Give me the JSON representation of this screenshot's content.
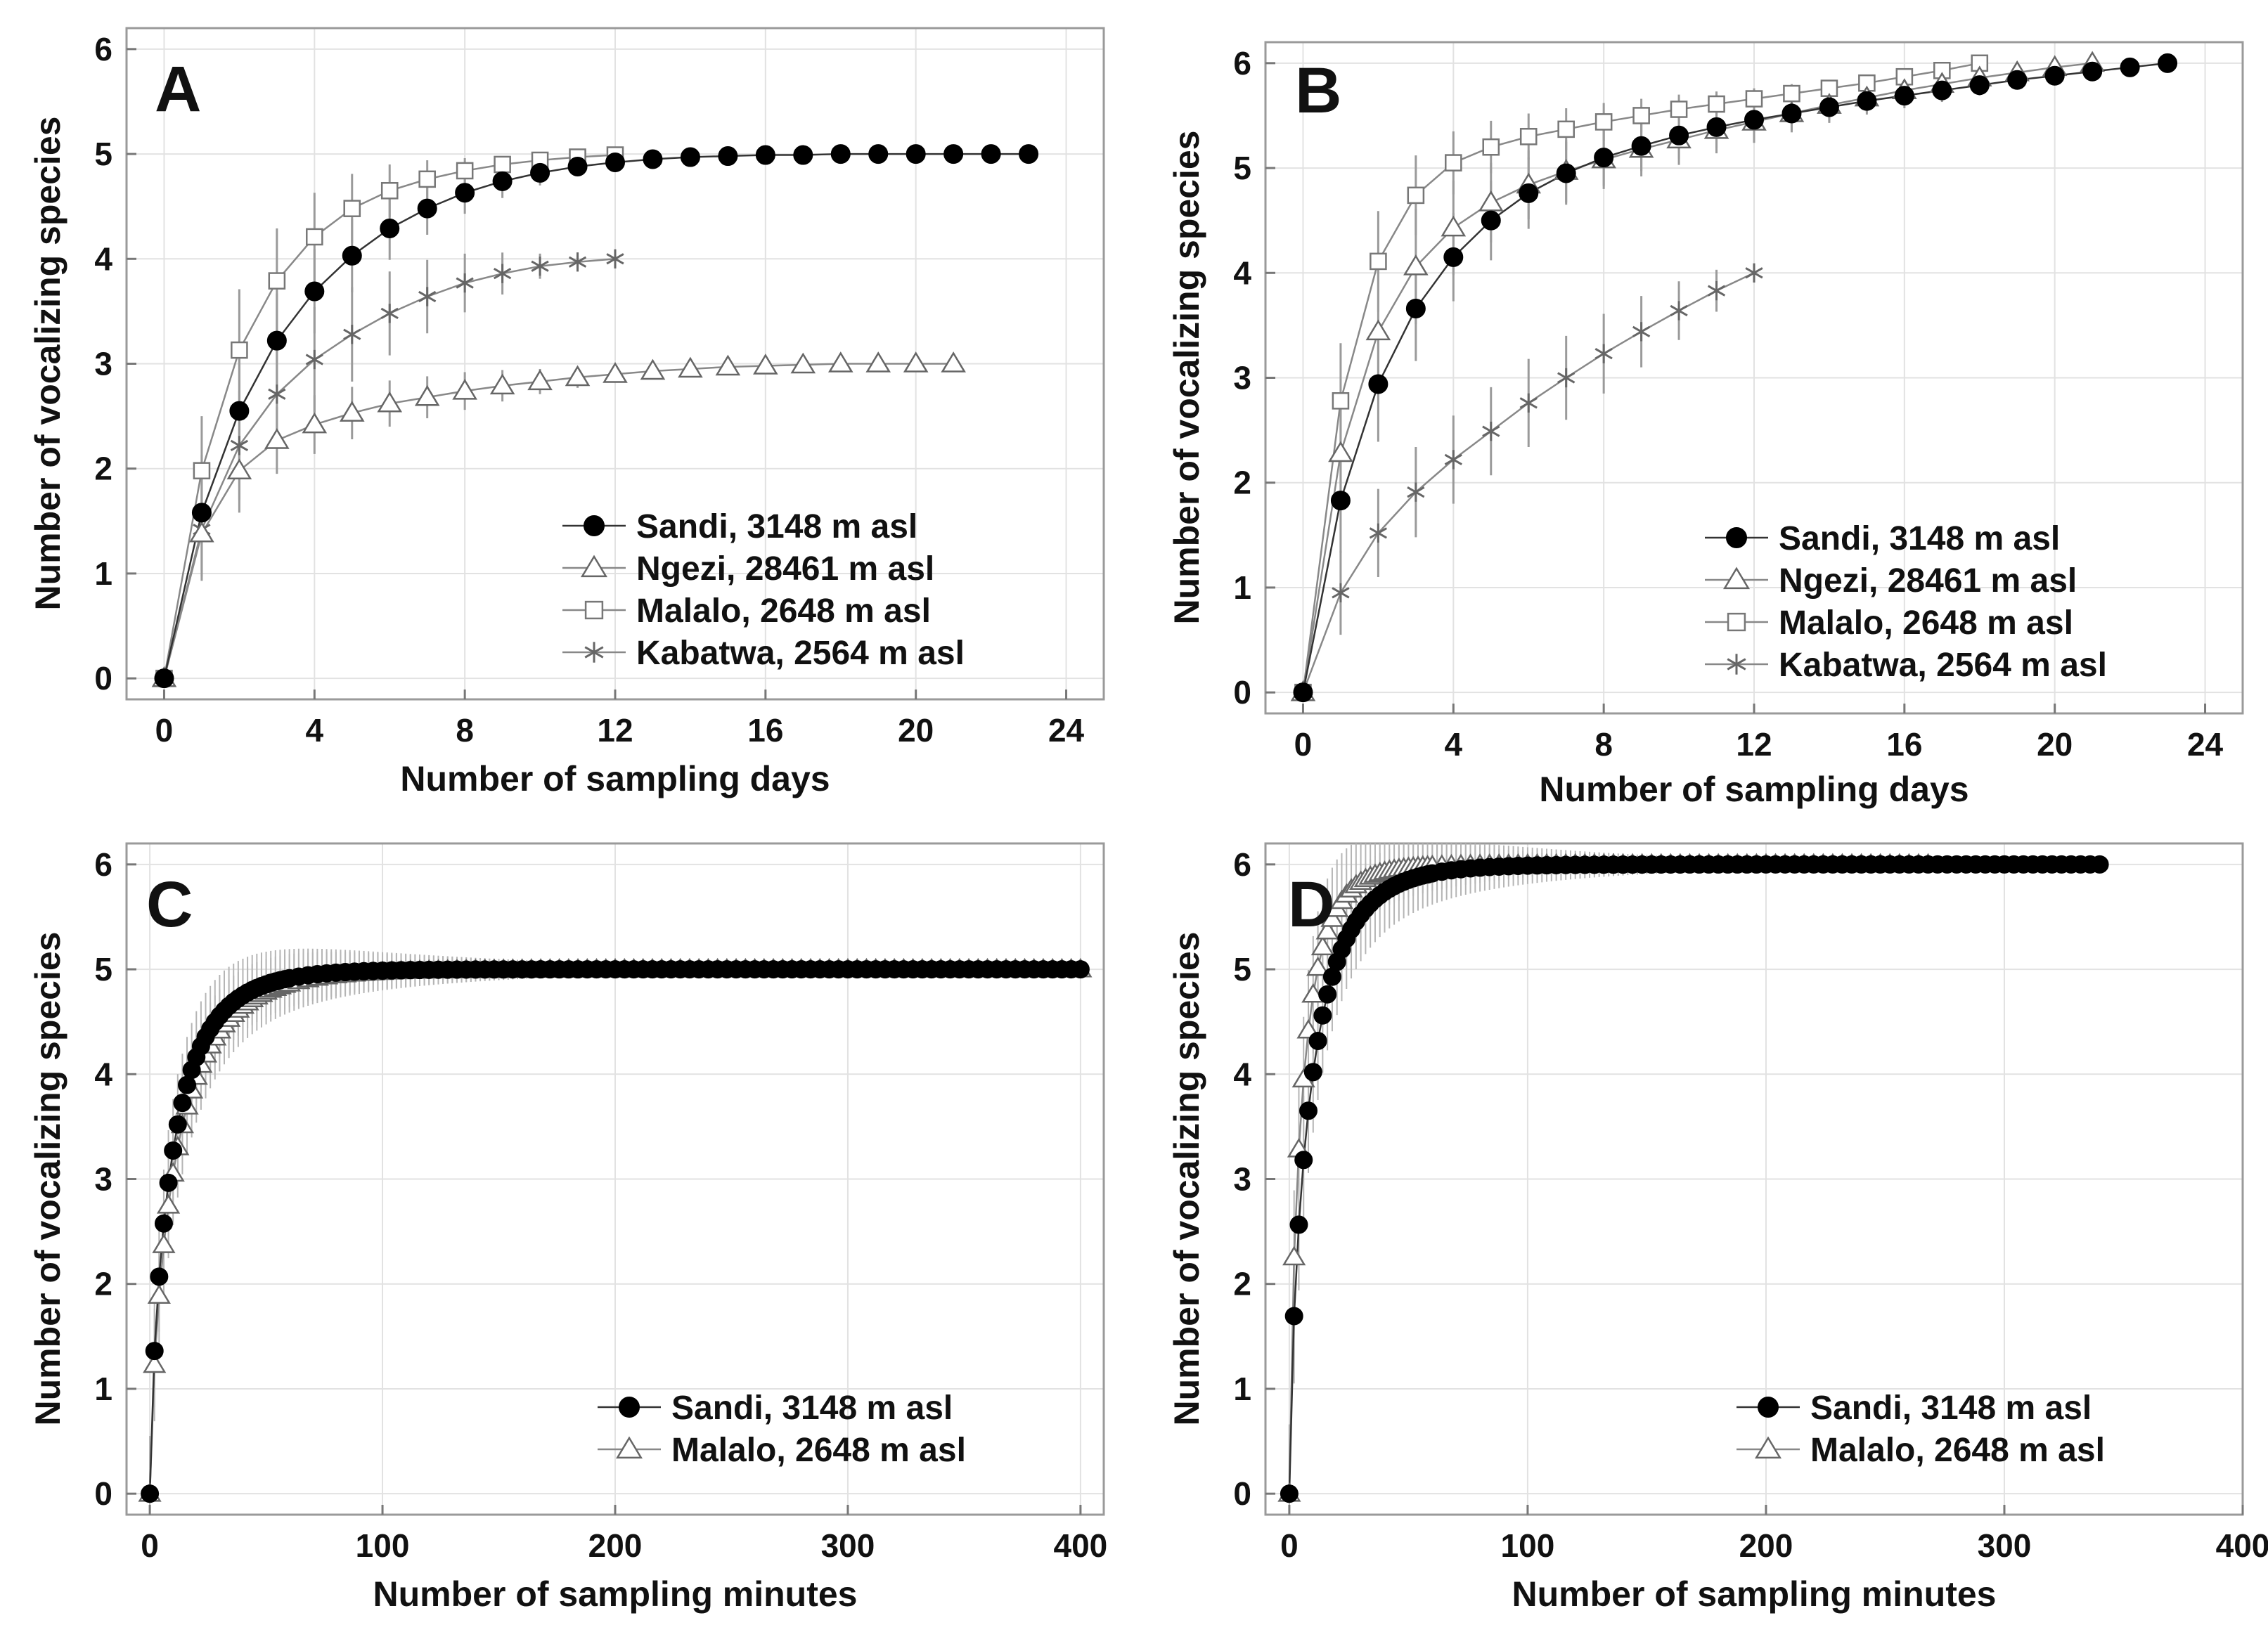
{
  "chart_data": [
    {
      "type": "line",
      "panel": "A",
      "xlabel": "Number of sampling days",
      "ylabel": "Number of vocalizing species",
      "xlim": [
        -1,
        25
      ],
      "ylim": [
        -0.2,
        6.2
      ],
      "xticks": [
        "0",
        "4",
        "8",
        "12",
        "16",
        "20",
        "24"
      ],
      "yticks": [
        "0",
        "1",
        "2",
        "3",
        "4",
        "5",
        "6"
      ],
      "series": [
        {
          "name": "Sandi, 3148 m asl",
          "marker": "circle",
          "x": [
            0,
            1,
            2,
            3,
            4,
            5,
            6,
            7,
            8,
            9,
            10,
            11,
            12,
            13,
            14,
            15,
            16,
            17,
            18,
            19,
            20,
            21,
            22,
            23
          ],
          "values": [
            0,
            1.58,
            2.55,
            3.22,
            3.69,
            4.03,
            4.29,
            4.48,
            4.63,
            4.74,
            4.82,
            4.88,
            4.92,
            4.95,
            4.97,
            4.98,
            4.99,
            4.99,
            5,
            5,
            5,
            5,
            5,
            5
          ],
          "err": [
            0,
            0.55,
            0.5,
            0.45,
            0.4,
            0.35,
            0.3,
            0.25,
            0.2,
            0.16,
            0.12,
            0.08,
            0.06,
            0.04,
            0.03,
            0.02,
            0.01,
            0,
            0,
            0,
            0,
            0,
            0,
            0
          ]
        },
        {
          "name": "Ngezi, 28461 m asl",
          "marker": "triangle",
          "x": [
            0,
            1,
            2,
            3,
            4,
            5,
            6,
            7,
            8,
            9,
            10,
            11,
            12,
            13,
            14,
            15,
            16,
            17,
            18,
            19,
            20,
            21
          ],
          "values": [
            0,
            1.38,
            1.98,
            2.27,
            2.42,
            2.53,
            2.62,
            2.68,
            2.74,
            2.79,
            2.83,
            2.87,
            2.9,
            2.93,
            2.95,
            2.97,
            2.98,
            2.99,
            3,
            3,
            3,
            3
          ],
          "err": [
            0,
            0.45,
            0.4,
            0.32,
            0.28,
            0.25,
            0.22,
            0.2,
            0.18,
            0.15,
            0.12,
            0.1,
            0.08,
            0.06,
            0.05,
            0.04,
            0.03,
            0.02,
            0.01,
            0,
            0,
            0
          ]
        },
        {
          "name": "Malalo, 2648 m asl",
          "marker": "square",
          "x": [
            0,
            1,
            2,
            3,
            4,
            5,
            6,
            7,
            8,
            9,
            10,
            11,
            12
          ],
          "values": [
            0,
            1.98,
            3.13,
            3.79,
            4.21,
            4.48,
            4.65,
            4.76,
            4.84,
            4.9,
            4.94,
            4.97,
            4.99
          ],
          "err": [
            0,
            0.52,
            0.58,
            0.5,
            0.42,
            0.33,
            0.25,
            0.18,
            0.12,
            0.08,
            0.05,
            0.03,
            0.01
          ]
        },
        {
          "name": "Kabatwa, 2564 m asl",
          "marker": "star",
          "x": [
            0,
            1,
            2,
            3,
            4,
            5,
            6,
            7,
            8,
            9,
            10,
            11,
            12
          ],
          "values": [
            0,
            1.42,
            2.22,
            2.71,
            3.04,
            3.28,
            3.48,
            3.64,
            3.77,
            3.86,
            3.93,
            3.97,
            4
          ],
          "err": [
            0,
            0.45,
            0.52,
            0.52,
            0.5,
            0.45,
            0.4,
            0.35,
            0.28,
            0.2,
            0.12,
            0.06,
            0
          ]
        }
      ],
      "legend": "lower-right"
    },
    {
      "type": "line",
      "panel": "B",
      "xlabel": "Number of sampling days",
      "ylabel": "Number of vocalizing species",
      "xlim": [
        -1,
        25
      ],
      "ylim": [
        -0.2,
        6.2
      ],
      "xticks": [
        "0",
        "4",
        "8",
        "12",
        "16",
        "20",
        "24"
      ],
      "yticks": [
        "0",
        "1",
        "2",
        "3",
        "4",
        "5",
        "6"
      ],
      "series": [
        {
          "name": "Sandi, 3148 m asl",
          "marker": "circle",
          "x": [
            0,
            1,
            2,
            3,
            4,
            5,
            6,
            7,
            8,
            9,
            10,
            11,
            12,
            13,
            14,
            15,
            16,
            17,
            18,
            19,
            20,
            21,
            22,
            23
          ],
          "values": [
            0,
            1.83,
            2.94,
            3.66,
            4.15,
            4.5,
            4.76,
            4.95,
            5.1,
            5.21,
            5.31,
            5.39,
            5.46,
            5.52,
            5.58,
            5.64,
            5.69,
            5.74,
            5.79,
            5.84,
            5.88,
            5.92,
            5.96,
            6
          ],
          "err": [
            0,
            0.5,
            0.55,
            0.5,
            0.42,
            0.38,
            0.34,
            0.3,
            0.27,
            0.24,
            0.22,
            0.2,
            0.18,
            0.16,
            0.15,
            0.13,
            0.12,
            0.11,
            0.1,
            0.08,
            0.07,
            0.05,
            0.03,
            0
          ]
        },
        {
          "name": "Ngezi, 28461 m asl",
          "marker": "triangle",
          "x": [
            0,
            1,
            2,
            3,
            4,
            5,
            6,
            7,
            8,
            9,
            10,
            11,
            12,
            13,
            14,
            15,
            16,
            17,
            18,
            19,
            20,
            21
          ],
          "values": [
            0,
            2.28,
            3.44,
            4.06,
            4.43,
            4.67,
            4.84,
            4.97,
            5.08,
            5.18,
            5.27,
            5.36,
            5.44,
            5.52,
            5.6,
            5.67,
            5.74,
            5.8,
            5.86,
            5.91,
            5.96,
            6
          ],
          "err": [
            0,
            0.55,
            0.6,
            0.55,
            0.45,
            0.38,
            0.33,
            0.3,
            0.28,
            0.26,
            0.24,
            0.22,
            0.2,
            0.18,
            0.16,
            0.14,
            0.12,
            0.1,
            0.08,
            0.06,
            0.03,
            0
          ]
        },
        {
          "name": "Malalo, 2648 m asl",
          "marker": "square",
          "x": [
            0,
            1,
            2,
            3,
            4,
            5,
            6,
            7,
            8,
            9,
            10,
            11,
            12,
            13,
            14,
            15,
            16,
            17,
            18
          ],
          "values": [
            0,
            2.78,
            4.11,
            4.74,
            5.05,
            5.2,
            5.3,
            5.37,
            5.44,
            5.5,
            5.56,
            5.61,
            5.66,
            5.71,
            5.76,
            5.81,
            5.87,
            5.93,
            6
          ],
          "err": [
            0,
            0.55,
            0.48,
            0.38,
            0.3,
            0.25,
            0.22,
            0.2,
            0.18,
            0.16,
            0.14,
            0.12,
            0.1,
            0.09,
            0.08,
            0.06,
            0.04,
            0.02,
            0
          ]
        },
        {
          "name": "Kabatwa, 2564 m asl",
          "marker": "star",
          "x": [
            0,
            1,
            2,
            3,
            4,
            5,
            6,
            7,
            8,
            9,
            10,
            11,
            12
          ],
          "values": [
            0,
            0.95,
            1.52,
            1.91,
            2.22,
            2.49,
            2.76,
            3.0,
            3.23,
            3.44,
            3.64,
            3.83,
            4
          ],
          "err": [
            0,
            0.4,
            0.42,
            0.43,
            0.42,
            0.42,
            0.42,
            0.4,
            0.38,
            0.34,
            0.28,
            0.2,
            0
          ]
        }
      ],
      "legend": "lower-right"
    },
    {
      "type": "line",
      "panel": "C",
      "xlabel": "Number of sampling minutes",
      "ylabel": "Number of vocalizing species",
      "xlim": [
        -10,
        410
      ],
      "ylim": [
        -0.2,
        6.2
      ],
      "xticks": [
        "0",
        "100",
        "200",
        "300",
        "400"
      ],
      "yticks": [
        "0",
        "1",
        "2",
        "3",
        "4",
        "5",
        "6"
      ],
      "series": [
        {
          "name": "Sandi, 3148 m asl",
          "marker": "circle",
          "asymptote": 5,
          "k": 0.68,
          "n": 5,
          "xmax": 400
        },
        {
          "name": "Malalo, 2648 m asl",
          "marker": "triangle",
          "asymptote": 5,
          "k": 0.58,
          "n": 5,
          "xmax": 400
        }
      ],
      "legend": "lower-right"
    },
    {
      "type": "line",
      "panel": "D",
      "xlabel": "Number of sampling minutes",
      "ylabel": "Number of vocalizing species",
      "xlim": [
        -10,
        400
      ],
      "ylim": [
        -0.2,
        6.2
      ],
      "xticks": [
        "0",
        "100",
        "200",
        "300",
        "400"
      ],
      "yticks": [
        "0",
        "1",
        "2",
        "3",
        "4",
        "5",
        "6"
      ],
      "series": [
        {
          "name": "Sandi, 3148 m asl",
          "marker": "circle",
          "asymptote": 6,
          "k": 0.72,
          "n": 6,
          "xmax": 343
        },
        {
          "name": "Malalo, 2648 m asl",
          "marker": "triangle",
          "asymptote": 6,
          "k": 1.15,
          "n": 6,
          "xmax": 270
        }
      ],
      "legend": "lower-right"
    }
  ]
}
